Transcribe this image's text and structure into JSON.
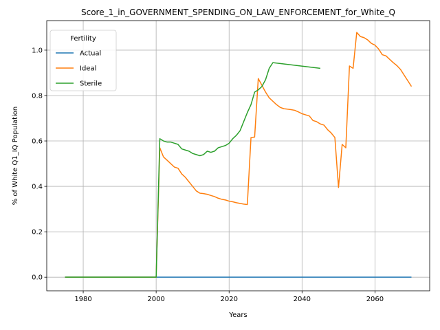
{
  "chart_data": {
    "type": "line",
    "title": "Score_1_in_GOVERNMENT_SPENDING_ON_LAW_ENFORCEMENT_for_White_Q",
    "xlabel": "Years",
    "ylabel": "% of White Q1_IQ Population",
    "xlim": [
      1970,
      2075
    ],
    "ylim": [
      -0.06,
      1.13
    ],
    "xticks": [
      "1980",
      "2000",
      "2020",
      "2040",
      "2060"
    ],
    "yticks": [
      "0.0",
      "0.2",
      "0.4",
      "0.6",
      "0.8",
      "1.0"
    ],
    "grid": true,
    "legend": {
      "title": "Fertility",
      "placement": "top-left"
    },
    "series": [
      {
        "name": "Actual",
        "color": "#1f77b4",
        "x": [
          1975,
          2000,
          2020,
          2040,
          2060,
          2070
        ],
        "y": [
          0.0,
          0.0,
          0.0,
          0.0,
          0.0,
          0.0
        ]
      },
      {
        "name": "Ideal",
        "color": "#ff7f0e",
        "x": [
          1975,
          2000,
          2001,
          2002,
          2003,
          2004,
          2005,
          2006,
          2007,
          2008,
          2009,
          2010,
          2011,
          2012,
          2013,
          2014,
          2015,
          2016,
          2017,
          2018,
          2019,
          2020,
          2021,
          2022,
          2023,
          2024,
          2025,
          2026,
          2027,
          2028,
          2029,
          2030,
          2031,
          2032,
          2033,
          2034,
          2035,
          2036,
          2037,
          2038,
          2039,
          2040,
          2041,
          2042,
          2043,
          2044,
          2045,
          2046,
          2047,
          2048,
          2049,
          2050,
          2051,
          2052,
          2053,
          2054,
          2055,
          2056,
          2057,
          2058,
          2059,
          2060,
          2061,
          2062,
          2063,
          2064,
          2065,
          2066,
          2067,
          2068,
          2069,
          2070
        ],
        "y": [
          0.0,
          0.0,
          0.57,
          0.53,
          0.515,
          0.5,
          0.485,
          0.48,
          0.455,
          0.44,
          0.42,
          0.4,
          0.38,
          0.37,
          0.368,
          0.365,
          0.36,
          0.355,
          0.348,
          0.343,
          0.34,
          0.335,
          0.332,
          0.328,
          0.325,
          0.322,
          0.32,
          0.615,
          0.617,
          0.875,
          0.845,
          0.815,
          0.79,
          0.775,
          0.76,
          0.748,
          0.742,
          0.74,
          0.738,
          0.735,
          0.728,
          0.72,
          0.715,
          0.71,
          0.69,
          0.685,
          0.675,
          0.67,
          0.65,
          0.635,
          0.615,
          0.395,
          0.585,
          0.57,
          0.93,
          0.92,
          1.078,
          1.06,
          1.055,
          1.045,
          1.03,
          1.022,
          1.005,
          0.98,
          0.975,
          0.96,
          0.945,
          0.932,
          0.915,
          0.89,
          0.865,
          0.84
        ]
      },
      {
        "name": "Sterile",
        "color": "#2ca02c",
        "x": [
          1975,
          2000,
          2001,
          2002,
          2003,
          2004,
          2005,
          2006,
          2007,
          2008,
          2009,
          2010,
          2011,
          2012,
          2013,
          2014,
          2015,
          2016,
          2017,
          2018,
          2019,
          2020,
          2021,
          2022,
          2023,
          2024,
          2025,
          2026,
          2027,
          2028,
          2029,
          2030,
          2031,
          2032,
          2033,
          2045
        ],
        "y": [
          0.0,
          0.0,
          0.61,
          0.6,
          0.595,
          0.595,
          0.59,
          0.585,
          0.565,
          0.56,
          0.555,
          0.545,
          0.54,
          0.535,
          0.54,
          0.555,
          0.55,
          0.555,
          0.57,
          0.575,
          0.58,
          0.59,
          0.61,
          0.625,
          0.645,
          0.685,
          0.725,
          0.76,
          0.815,
          0.825,
          0.84,
          0.87,
          0.92,
          0.945,
          0.943,
          0.92
        ]
      }
    ]
  }
}
